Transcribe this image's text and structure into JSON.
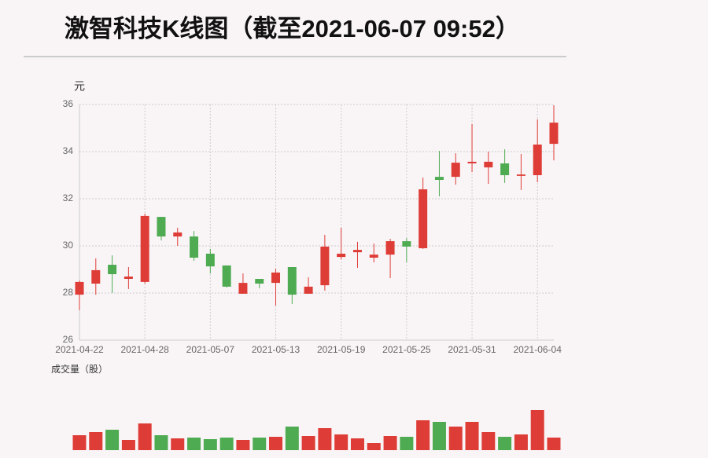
{
  "chart_data": {
    "type": "candlestick",
    "title": "激智科技K线图（截至2021-06-07 09:52）",
    "y_label": "元",
    "volume_label": "成交量（股）",
    "categories": [
      "2021-04-22",
      null,
      null,
      null,
      "2021-04-28",
      null,
      null,
      null,
      "2021-05-07",
      null,
      null,
      null,
      "2021-05-13",
      null,
      null,
      null,
      "2021-05-19",
      null,
      null,
      null,
      "2021-05-25",
      null,
      null,
      null,
      "2021-05-31",
      null,
      null,
      null,
      "2021-06-04",
      null
    ],
    "open": [
      27.93,
      28.4,
      29.2,
      28.6,
      28.47,
      31.23,
      30.4,
      30.4,
      29.67,
      29.17,
      27.97,
      28.6,
      28.43,
      29.1,
      27.97,
      28.33,
      29.53,
      29.73,
      29.5,
      29.63,
      30.2,
      29.9,
      32.93,
      32.93,
      33.5,
      33.33,
      33.5,
      32.97,
      33.0,
      34.33
    ],
    "close": [
      28.47,
      28.97,
      28.8,
      28.7,
      31.27,
      30.4,
      30.57,
      29.5,
      29.13,
      28.27,
      28.43,
      28.4,
      28.87,
      27.93,
      28.27,
      29.97,
      29.67,
      29.83,
      29.63,
      30.2,
      29.97,
      32.4,
      32.8,
      33.53,
      33.57,
      33.57,
      33.0,
      33.03,
      34.3,
      35.23
    ],
    "high": [
      28.53,
      29.47,
      29.6,
      29.1,
      31.37,
      31.23,
      30.77,
      30.63,
      29.87,
      29.17,
      28.83,
      28.6,
      29.03,
      29.1,
      28.67,
      30.47,
      30.77,
      30.17,
      30.1,
      30.3,
      30.33,
      32.9,
      34.03,
      33.93,
      35.17,
      34.0,
      34.1,
      33.9,
      35.37,
      35.97
    ],
    "low": [
      27.27,
      27.93,
      28.0,
      28.17,
      28.4,
      30.23,
      30.0,
      29.37,
      28.83,
      28.23,
      27.97,
      28.2,
      27.47,
      27.53,
      27.97,
      28.1,
      29.43,
      29.07,
      29.3,
      28.63,
      29.3,
      29.87,
      32.1,
      32.6,
      33.13,
      32.63,
      32.67,
      32.37,
      32.7,
      33.63
    ],
    "volume": [
      19,
      23,
      26,
      13,
      34,
      19,
      15,
      16,
      14,
      16,
      13,
      16,
      17,
      30,
      18,
      28,
      20,
      15,
      9,
      18,
      17,
      38,
      36,
      30,
      36,
      23,
      17,
      20,
      51,
      16
    ],
    "up_color": "#de3c36",
    "down_color": "#4fab52",
    "ylim": [
      26,
      36
    ],
    "yticks": [
      26,
      28,
      30,
      32,
      34,
      36
    ],
    "grid": true
  }
}
